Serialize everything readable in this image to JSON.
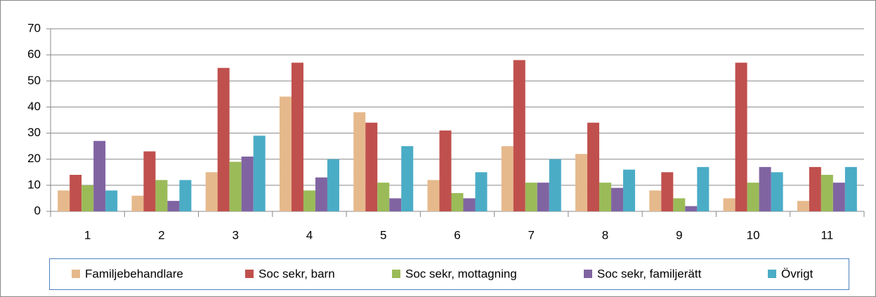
{
  "chart_data": {
    "type": "bar",
    "categories": [
      "1",
      "2",
      "3",
      "4",
      "5",
      "6",
      "7",
      "8",
      "9",
      "10",
      "11"
    ],
    "series": [
      {
        "name": "Familjebehandlare",
        "color": "#e6b98c",
        "values": [
          8,
          6,
          15,
          44,
          38,
          12,
          25,
          22,
          8,
          5,
          4
        ]
      },
      {
        "name": "Soc sekr, barn",
        "color": "#c0504d",
        "values": [
          14,
          23,
          55,
          57,
          34,
          31,
          58,
          34,
          15,
          57,
          17
        ]
      },
      {
        "name": "Soc sekr, mottagning",
        "color": "#9bbb59",
        "values": [
          10,
          12,
          19,
          8,
          11,
          7,
          11,
          11,
          5,
          11,
          14
        ]
      },
      {
        "name": "Soc sekr, familjerätt",
        "color": "#8064a2",
        "values": [
          27,
          4,
          21,
          13,
          5,
          5,
          11,
          9,
          2,
          17,
          11
        ]
      },
      {
        "name": "Övrigt",
        "color": "#4bacc6",
        "values": [
          8,
          12,
          29,
          20,
          25,
          15,
          20,
          16,
          17,
          15,
          17
        ]
      }
    ],
    "ylim": [
      0,
      70
    ],
    "yticks": [
      0,
      10,
      20,
      30,
      40,
      50,
      60,
      70
    ],
    "grid": true,
    "legend": "bottom"
  }
}
